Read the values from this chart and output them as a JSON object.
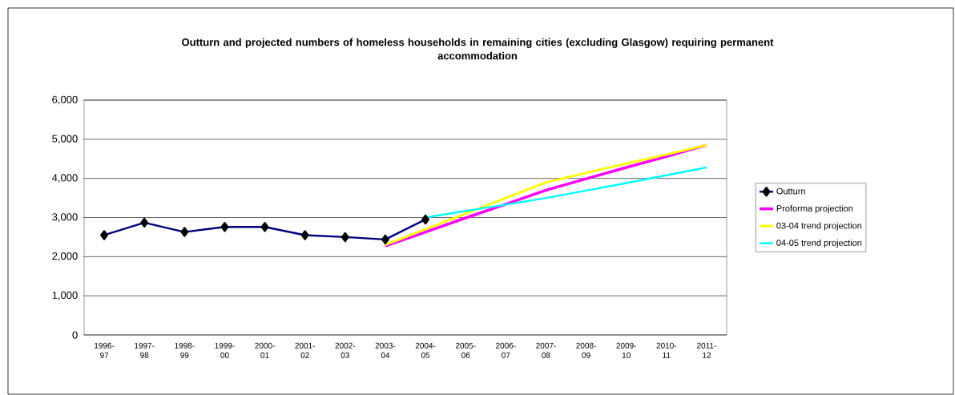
{
  "chart_data": {
    "type": "line",
    "title": "Outturn and projected numbers of homeless households in remaining cities (excluding Glasgow) requiring permanent accommodation",
    "categories": [
      "1996-97",
      "1997-98",
      "1998-99",
      "1999-00",
      "2000-01",
      "2001-02",
      "2002-03",
      "2003-04",
      "2004-05",
      "2005-06",
      "2006-07",
      "2007-08",
      "2008-09",
      "2009-10",
      "2010-11",
      "2011-12"
    ],
    "series": [
      {
        "name": "Outturn",
        "color": "#000080",
        "marker": "diamond",
        "values": [
          2550,
          2870,
          2630,
          2760,
          2760,
          2550,
          2500,
          2440,
          2950,
          null,
          null,
          null,
          null,
          null,
          null,
          null
        ]
      },
      {
        "name": "Proforma projection",
        "color": "#ff00ff",
        "values": [
          null,
          null,
          null,
          null,
          null,
          null,
          null,
          2270,
          2630,
          2990,
          3340,
          3700,
          3990,
          4280,
          4560,
          4850
        ]
      },
      {
        "name": "03-04 trend projection",
        "color": "#ffff00",
        "values": [
          null,
          null,
          null,
          null,
          null,
          null,
          null,
          2300,
          2700,
          3100,
          3500,
          3900,
          4140,
          4380,
          4610,
          4850
        ]
      },
      {
        "name": "04-05 trend projection",
        "color": "#00ffff",
        "values": [
          null,
          null,
          null,
          null,
          null,
          null,
          null,
          null,
          3000,
          3170,
          3330,
          3500,
          3690,
          3880,
          4080,
          4280
        ]
      }
    ],
    "ylim": [
      0,
      6000
    ],
    "yticks": [
      {
        "value": 0,
        "label": "0"
      },
      {
        "value": 1000,
        "label": "1,000"
      },
      {
        "value": 2000,
        "label": "2,000"
      },
      {
        "value": 3000,
        "label": "3,000"
      },
      {
        "value": 4000,
        "label": "4,000"
      },
      {
        "value": 5000,
        "label": "5,000"
      },
      {
        "value": 6000,
        "label": "6,000"
      }
    ],
    "grid": "y",
    "legend": "right",
    "line_style": "solid"
  }
}
